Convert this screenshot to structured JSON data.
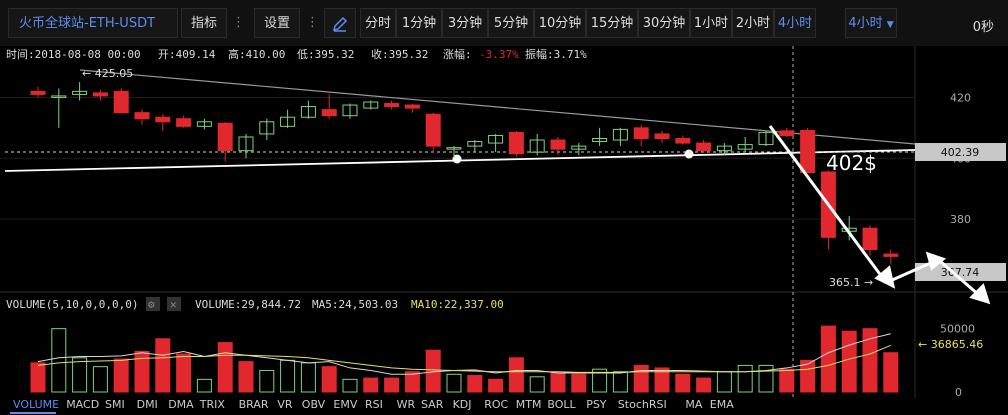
{
  "toolbar": {
    "symbol": "火币全球站-ETH-USDT",
    "indicator_label": "指标",
    "settings_label": "设置",
    "timeframes": [
      "分时",
      "1分钟",
      "3分钟",
      "5分钟",
      "10分钟",
      "15分钟",
      "30分钟",
      "1小时",
      "2小时",
      "4小时"
    ],
    "active_timeframe": "4小时",
    "timeframe_dropdown": "4小时",
    "countdown": "0秒"
  },
  "info_bar": {
    "time": "时间:2018-08-08 00:00",
    "open": "开:409.14",
    "high": "高:410.00",
    "low": "低:395.32",
    "close": "收:395.32",
    "change_label": "涨幅:",
    "change_value": "-3.37%",
    "amplitude": "振幅:3.71%"
  },
  "annotations": {
    "high_marker": "← 425.05",
    "low_marker": "365.1 →",
    "price_note": "402$"
  },
  "price_axis": {
    "ticks": [
      "420",
      "400",
      "380"
    ],
    "current_label": "402.39",
    "last_label": "367.74"
  },
  "volume_bar": {
    "title": "VOLUME(5,10,0,0,0,0)",
    "volume": "VOLUME:29,844.72",
    "ma5": "MA5:24,503.03",
    "ma10": "MA10:22,337.00",
    "axis_ticks": [
      "50000",
      "0"
    ],
    "ma_label": "← 36865.46"
  },
  "bottom_tabs": [
    "VOLUME",
    "MACD",
    "SMI",
    "DMI",
    "DMA",
    "TRIX",
    "BRAR",
    "VR",
    "OBV",
    "EMV",
    "RSI",
    "WR",
    "SAR",
    "KDJ",
    "ROC",
    "MTM",
    "BOLL",
    "PSY",
    "StochRSI",
    "MA",
    "EMA"
  ],
  "colors": {
    "up": "#7ed37e",
    "down": "#e0282e",
    "accent": "#5b8def",
    "ma10": "#e8e05a",
    "ma5": "#d8d8d8"
  },
  "chart_data": {
    "type": "candlestick",
    "price_ylim": [
      358,
      431
    ],
    "volume_ylim": [
      0,
      60000
    ],
    "candles": [
      {
        "o": 422.0,
        "h": 423.5,
        "l": 420.0,
        "c": 421.0
      },
      {
        "o": 420.0,
        "h": 423.0,
        "l": 410.0,
        "c": 420.5
      },
      {
        "o": 421.0,
        "h": 425.05,
        "l": 419.0,
        "c": 422.0
      },
      {
        "o": 421.5,
        "h": 422.5,
        "l": 419.0,
        "c": 420.5
      },
      {
        "o": 422.0,
        "h": 423.0,
        "l": 415.0,
        "c": 415.0
      },
      {
        "o": 415.0,
        "h": 416.0,
        "l": 411.0,
        "c": 413.0
      },
      {
        "o": 413.5,
        "h": 414.5,
        "l": 409.0,
        "c": 412.0
      },
      {
        "o": 413.0,
        "h": 414.0,
        "l": 410.0,
        "c": 410.5
      },
      {
        "o": 410.5,
        "h": 413.0,
        "l": 409.5,
        "c": 412.0
      },
      {
        "o": 411.5,
        "h": 412.0,
        "l": 399.0,
        "c": 402.5
      },
      {
        "o": 402.5,
        "h": 408.0,
        "l": 400.0,
        "c": 407.0
      },
      {
        "o": 408.0,
        "h": 413.0,
        "l": 406.0,
        "c": 412.0
      },
      {
        "o": 410.5,
        "h": 416.0,
        "l": 410.0,
        "c": 413.5
      },
      {
        "o": 413.5,
        "h": 419.0,
        "l": 413.0,
        "c": 417.0
      },
      {
        "o": 416.0,
        "h": 421.0,
        "l": 413.0,
        "c": 414.0
      },
      {
        "o": 414.0,
        "h": 418.0,
        "l": 413.0,
        "c": 417.5
      },
      {
        "o": 416.5,
        "h": 419.0,
        "l": 416.0,
        "c": 418.5
      },
      {
        "o": 418.0,
        "h": 419.0,
        "l": 416.0,
        "c": 417.0
      },
      {
        "o": 417.5,
        "h": 418.0,
        "l": 415.0,
        "c": 416.5
      },
      {
        "o": 414.5,
        "h": 415.0,
        "l": 402.0,
        "c": 404.0
      },
      {
        "o": 403.0,
        "h": 404.0,
        "l": 400.0,
        "c": 403.5
      },
      {
        "o": 404.0,
        "h": 406.0,
        "l": 402.0,
        "c": 405.5
      },
      {
        "o": 405.0,
        "h": 408.0,
        "l": 402.0,
        "c": 407.5
      },
      {
        "o": 408.5,
        "h": 409.0,
        "l": 400.5,
        "c": 401.5
      },
      {
        "o": 402.0,
        "h": 408.0,
        "l": 401.0,
        "c": 406.0
      },
      {
        "o": 406.0,
        "h": 407.0,
        "l": 401.0,
        "c": 403.0
      },
      {
        "o": 403.0,
        "h": 405.0,
        "l": 401.0,
        "c": 404.0
      },
      {
        "o": 405.5,
        "h": 410.0,
        "l": 404.0,
        "c": 406.5
      },
      {
        "o": 406.0,
        "h": 410.0,
        "l": 404.0,
        "c": 409.5
      },
      {
        "o": 410.0,
        "h": 411.0,
        "l": 404.0,
        "c": 406.5
      },
      {
        "o": 408.0,
        "h": 409.0,
        "l": 405.0,
        "c": 406.5
      },
      {
        "o": 406.5,
        "h": 407.5,
        "l": 404.5,
        "c": 405.0
      },
      {
        "o": 405.0,
        "h": 406.0,
        "l": 402.0,
        "c": 402.5
      },
      {
        "o": 402.5,
        "h": 405.0,
        "l": 401.0,
        "c": 404.0
      },
      {
        "o": 403.0,
        "h": 407.0,
        "l": 402.0,
        "c": 404.5
      },
      {
        "o": 404.5,
        "h": 409.0,
        "l": 404.0,
        "c": 408.5
      },
      {
        "o": 409.0,
        "h": 410.0,
        "l": 407.0,
        "c": 407.5
      },
      {
        "o": 409.14,
        "h": 410.0,
        "l": 395.32,
        "c": 395.32
      },
      {
        "o": 395.5,
        "h": 396.0,
        "l": 370.0,
        "c": 374.0
      },
      {
        "o": 376.0,
        "h": 381.0,
        "l": 373.0,
        "c": 377.0
      },
      {
        "o": 377.0,
        "h": 378.0,
        "l": 368.0,
        "c": 370.0
      },
      {
        "o": 368.5,
        "h": 370.0,
        "l": 365.1,
        "c": 367.74
      }
    ],
    "volumes": [
      {
        "v": 23000,
        "dir": "down"
      },
      {
        "v": 50000,
        "dir": "up"
      },
      {
        "v": 27000,
        "dir": "up"
      },
      {
        "v": 20000,
        "dir": "up"
      },
      {
        "v": 26000,
        "dir": "down"
      },
      {
        "v": 32000,
        "dir": "down"
      },
      {
        "v": 42000,
        "dir": "down"
      },
      {
        "v": 30000,
        "dir": "down"
      },
      {
        "v": 10000,
        "dir": "up"
      },
      {
        "v": 39000,
        "dir": "down"
      },
      {
        "v": 24000,
        "dir": "down"
      },
      {
        "v": 17000,
        "dir": "up"
      },
      {
        "v": 25000,
        "dir": "up"
      },
      {
        "v": 23000,
        "dir": "up"
      },
      {
        "v": 20000,
        "dir": "down"
      },
      {
        "v": 10000,
        "dir": "up"
      },
      {
        "v": 11000,
        "dir": "down"
      },
      {
        "v": 11000,
        "dir": "down"
      },
      {
        "v": 16000,
        "dir": "down"
      },
      {
        "v": 33000,
        "dir": "down"
      },
      {
        "v": 14000,
        "dir": "up"
      },
      {
        "v": 13000,
        "dir": "down"
      },
      {
        "v": 10000,
        "dir": "down"
      },
      {
        "v": 27000,
        "dir": "down"
      },
      {
        "v": 12000,
        "dir": "up"
      },
      {
        "v": 15000,
        "dir": "down"
      },
      {
        "v": 14000,
        "dir": "down"
      },
      {
        "v": 18000,
        "dir": "up"
      },
      {
        "v": 16000,
        "dir": "up"
      },
      {
        "v": 21000,
        "dir": "down"
      },
      {
        "v": 19000,
        "dir": "down"
      },
      {
        "v": 14000,
        "dir": "down"
      },
      {
        "v": 11000,
        "dir": "down"
      },
      {
        "v": 16000,
        "dir": "up"
      },
      {
        "v": 21000,
        "dir": "up"
      },
      {
        "v": 21000,
        "dir": "up"
      },
      {
        "v": 18000,
        "dir": "down"
      },
      {
        "v": 25000,
        "dir": "down"
      },
      {
        "v": 52000,
        "dir": "down"
      },
      {
        "v": 48000,
        "dir": "down"
      },
      {
        "v": 50000,
        "dir": "down"
      },
      {
        "v": 31000,
        "dir": "down"
      }
    ],
    "ma5_line": [
      24000,
      27000,
      28000,
      28000,
      28500,
      31000,
      29000,
      32000,
      28000,
      31000,
      29000,
      27000,
      25000,
      23000,
      24000,
      19000,
      17000,
      14000,
      14000,
      16000,
      17000,
      17500,
      15000,
      17000,
      17000,
      15000,
      15000,
      15000,
      15000,
      17000,
      17000,
      17000,
      16500,
      16000,
      16000,
      17000,
      19000,
      22000,
      31000,
      37000,
      42000,
      46000
    ],
    "ma10_line": [
      21000,
      23000,
      24000,
      24500,
      25000,
      26500,
      27000,
      28000,
      28000,
      29000,
      29000,
      28500,
      28000,
      27000,
      25000,
      23000,
      21000,
      19000,
      18000,
      17500,
      17000,
      16500,
      16000,
      16000,
      16000,
      16000,
      15500,
      15500,
      15500,
      16000,
      16000,
      16000,
      16000,
      16000,
      16000,
      16500,
      17000,
      18000,
      21000,
      26000,
      30000,
      36865.46
    ]
  }
}
